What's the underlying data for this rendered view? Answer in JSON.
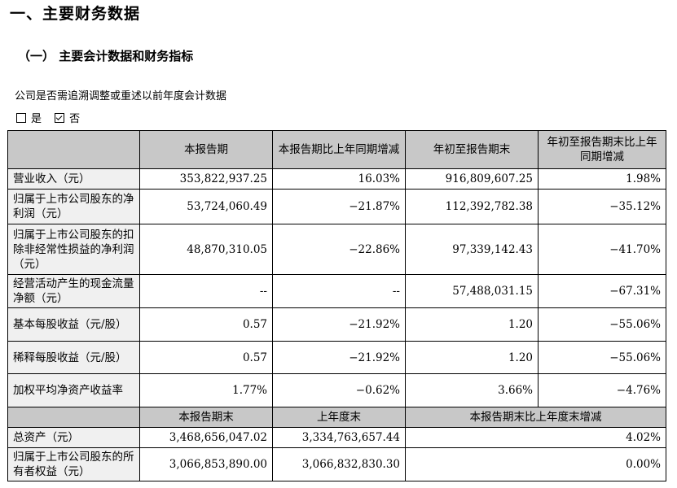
{
  "heading": "一、主要财务数据",
  "subheading": "（一） 主要会计数据和财务指标",
  "question": "公司是否需追溯调整或重述以前年度会计数据",
  "options": [
    {
      "label": "是",
      "checked": false
    },
    {
      "label": "否",
      "checked": true
    }
  ],
  "table1": {
    "headers": [
      "",
      "本报告期",
      "本报告期比上年同期增减",
      "年初至报告期末",
      "年初至报告期末比上年同期增减"
    ],
    "rows": [
      {
        "label": "营业收入（元）",
        "cells": [
          "353,822,937.25",
          "16.03%",
          "916,809,607.25",
          "1.98%"
        ]
      },
      {
        "label": "归属于上市公司股东的净利润（元）",
        "cells": [
          "53,724,060.49",
          "−21.87%",
          "112,392,782.38",
          "−35.12%"
        ]
      },
      {
        "label": "归属于上市公司股东的扣除非经常性损益的净利润（元）",
        "cells": [
          "48,870,310.05",
          "−22.86%",
          "97,339,142.43",
          "−41.70%"
        ]
      },
      {
        "label": "经营活动产生的现金流量净额（元）",
        "cells": [
          "--",
          "--",
          "57,488,031.15",
          "−67.31%"
        ]
      },
      {
        "label": "基本每股收益（元/股）",
        "cells": [
          "0.57",
          "−21.92%",
          "1.20",
          "−55.06%"
        ]
      },
      {
        "label": "稀释每股收益（元/股）",
        "cells": [
          "0.57",
          "−21.92%",
          "1.20",
          "−55.06%"
        ]
      },
      {
        "label": "加权平均净资产收益率",
        "cells": [
          "1.77%",
          "−0.62%",
          "3.66%",
          "−4.76%"
        ]
      }
    ]
  },
  "table2": {
    "headers": [
      "本报告期末",
      "上年度末",
      "本报告期末比上年度末增减"
    ],
    "rows": [
      {
        "label": "总资产（元）",
        "cells": [
          "3,468,656,047.02",
          "3,334,763,657.44",
          "4.02%"
        ]
      },
      {
        "label": "归属于上市公司股东的所有者权益（元）",
        "cells": [
          "3,066,853,890.00",
          "3,066,832,830.30",
          "0.00%"
        ]
      }
    ]
  }
}
